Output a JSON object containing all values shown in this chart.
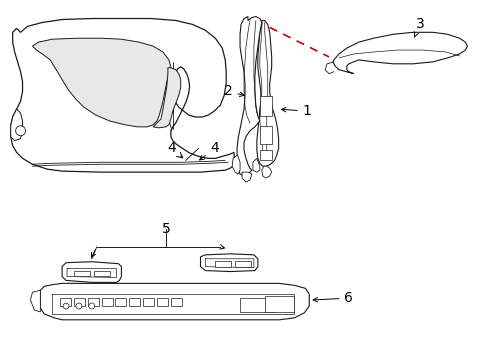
{
  "bg_color": "#ffffff",
  "line_color": "#1a1a1a",
  "red_dash_color": "#cc0000",
  "figsize": [
    4.89,
    3.6
  ],
  "dpi": 100,
  "label_fontsize": 10
}
